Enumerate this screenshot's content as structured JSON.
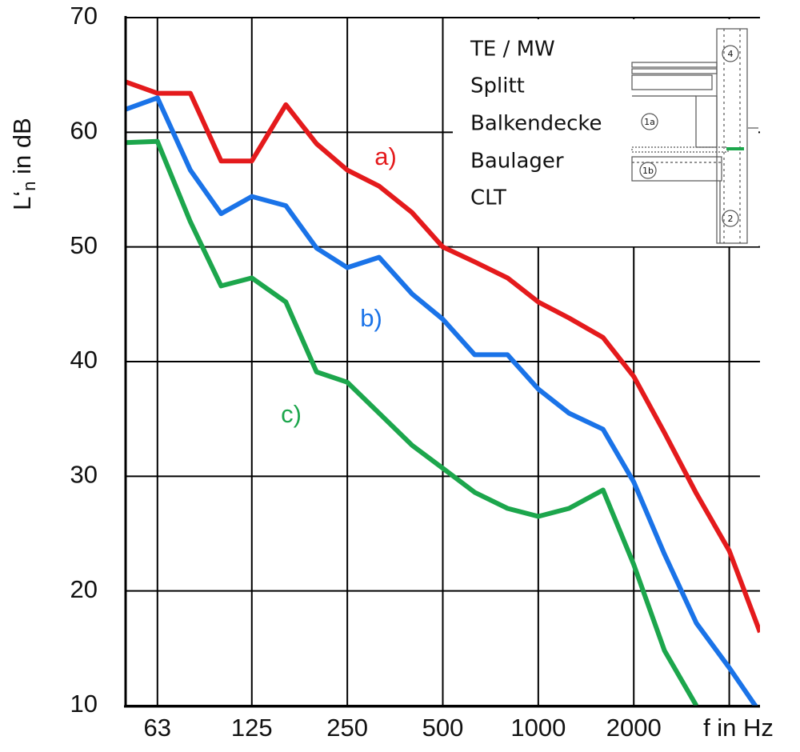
{
  "chart_data": {
    "type": "line",
    "y_label": [
      "L‘",
      "n",
      " in dB"
    ],
    "x_label": "f in Hz",
    "x": [
      50,
      63,
      80,
      100,
      125,
      160,
      200,
      250,
      315,
      400,
      500,
      630,
      800,
      1000,
      1250,
      1600,
      2000,
      2500,
      3150,
      4000,
      5000
    ],
    "xlim": [
      50,
      5000
    ],
    "xscale": "log",
    "xticks": [
      63,
      125,
      250,
      500,
      1000,
      2000,
      {
        "value": 4000,
        "label": null
      }
    ],
    "ylim": [
      10,
      70
    ],
    "yticks": [
      10,
      20,
      30,
      40,
      50,
      60,
      70
    ],
    "grid": true,
    "series": [
      {
        "name": "a)",
        "color": "#e41a1c",
        "values": [
          64.4,
          63.4,
          63.4,
          57.5,
          57.5,
          62.4,
          59.0,
          56.7,
          55.3,
          53.0,
          50.0,
          48.7,
          47.3,
          45.2,
          43.8,
          42.1,
          38.7,
          33.8,
          28.5,
          23.5,
          16.4
        ]
      },
      {
        "name": "b)",
        "color": "#1a73e8",
        "values": [
          62.0,
          63.0,
          56.7,
          52.9,
          54.4,
          53.6,
          49.9,
          48.2,
          49.1,
          45.9,
          43.7,
          40.6,
          40.6,
          37.6,
          35.5,
          34.1,
          29.5,
          23.2,
          17.2,
          13.3,
          9.4
        ]
      },
      {
        "name": "c)",
        "color": "#1ca64c",
        "values": [
          59.1,
          59.2,
          52.2,
          46.6,
          47.3,
          45.2,
          39.1,
          38.2,
          35.5,
          32.7,
          30.7,
          28.6,
          27.2,
          26.5,
          27.2,
          28.8,
          22.3,
          14.8,
          10.0,
          null,
          null
        ]
      }
    ],
    "inset": {
      "lines": [
        "TE / MW",
        "Splitt",
        "Balkendecke",
        "Baulager",
        "CLT"
      ],
      "callouts": [
        "4",
        "1a",
        "1b",
        "2"
      ]
    }
  }
}
